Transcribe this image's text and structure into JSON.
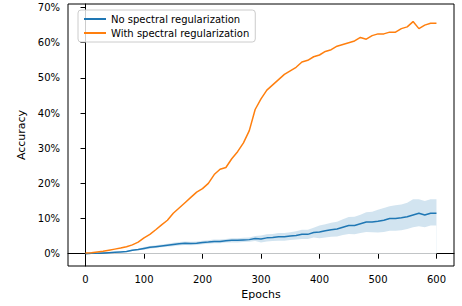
{
  "chart_data": {
    "type": "line",
    "x_label": "Epochs",
    "y_label": "Accuracy",
    "x": [
      0,
      10,
      20,
      30,
      40,
      50,
      60,
      70,
      80,
      90,
      100,
      110,
      120,
      130,
      140,
      150,
      160,
      170,
      180,
      190,
      200,
      210,
      220,
      230,
      240,
      250,
      260,
      270,
      280,
      290,
      300,
      310,
      320,
      330,
      340,
      350,
      360,
      370,
      380,
      390,
      400,
      410,
      420,
      430,
      440,
      450,
      460,
      470,
      480,
      490,
      500,
      510,
      520,
      530,
      540,
      550,
      560,
      570,
      580,
      590,
      600
    ],
    "series": [
      {
        "name": "No spectral regularization",
        "color": "#1f77b4",
        "values": [
          0,
          0.1,
          0.1,
          0.2,
          0.3,
          0.4,
          0.5,
          0.6,
          1.0,
          1.2,
          1.5,
          1.8,
          2.0,
          2.2,
          2.4,
          2.6,
          2.8,
          3.0,
          2.9,
          3.0,
          3.2,
          3.3,
          3.5,
          3.5,
          3.7,
          3.8,
          3.8,
          3.9,
          4.0,
          4.3,
          4.2,
          4.5,
          4.6,
          4.8,
          4.8,
          5.0,
          5.2,
          5.5,
          5.5,
          6.0,
          6.2,
          6.5,
          6.8,
          7.0,
          7.5,
          8.0,
          8.0,
          8.5,
          9.0,
          9.0,
          9.2,
          9.5,
          10.0,
          10.0,
          10.2,
          10.5,
          11.0,
          11.5,
          11.0,
          11.5,
          11.5
        ],
        "lower": [
          0,
          0,
          0,
          0.1,
          0.2,
          0.3,
          0.4,
          0.5,
          0.8,
          1.0,
          1.1,
          1.4,
          1.6,
          1.8,
          2.0,
          2.1,
          2.3,
          2.5,
          2.4,
          2.5,
          2.7,
          2.8,
          3.0,
          3.0,
          3.2,
          3.2,
          3.2,
          3.3,
          3.4,
          3.6,
          3.2,
          3.5,
          3.6,
          3.7,
          3.7,
          3.9,
          4.0,
          4.2,
          4.2,
          4.6,
          4.4,
          4.6,
          4.8,
          4.9,
          5.3,
          5.6,
          5.5,
          5.9,
          6.2,
          6.1,
          6.0,
          6.2,
          6.5,
          6.5,
          6.7,
          7.0,
          7.5,
          7.8,
          7.5,
          8.0,
          8.0
        ],
        "upper": [
          0.1,
          0.2,
          0.2,
          0.3,
          0.4,
          0.5,
          0.6,
          0.8,
          1.2,
          1.4,
          1.9,
          2.2,
          2.4,
          2.6,
          2.8,
          3.1,
          3.3,
          3.5,
          3.4,
          3.5,
          3.7,
          3.8,
          4.0,
          4.0,
          4.2,
          4.4,
          4.4,
          4.5,
          4.6,
          5.0,
          5.2,
          5.5,
          5.6,
          5.9,
          5.9,
          6.1,
          6.4,
          6.8,
          6.8,
          7.4,
          8.0,
          8.4,
          8.8,
          9.1,
          9.8,
          10.4,
          10.5,
          11.1,
          11.8,
          11.9,
          12.5,
          13.0,
          13.5,
          13.8,
          14.0,
          14.5,
          15.5,
          15.5,
          15.0,
          15.5,
          15.5
        ]
      },
      {
        "name": "With spectral regularization",
        "color": "#ff7f0e",
        "values": [
          0.2,
          0.3,
          0.5,
          0.7,
          1.0,
          1.3,
          1.6,
          2.0,
          2.5,
          3.3,
          4.5,
          5.5,
          6.8,
          8.2,
          9.5,
          11.5,
          13,
          14.5,
          16,
          17.5,
          18.5,
          20,
          22.5,
          24,
          24.5,
          27,
          29,
          31.5,
          35,
          41,
          44,
          46.5,
          48,
          49.5,
          51,
          52,
          53,
          54.5,
          55,
          56,
          56.5,
          57.5,
          58,
          59,
          59.5,
          60,
          60.5,
          61.5,
          61,
          62,
          62.5,
          62.5,
          63,
          63,
          64,
          64.5,
          66,
          64,
          65,
          65.5,
          65.5
        ]
      }
    ],
    "xlim": [
      -30,
      630
    ],
    "xticks": [
      0,
      100,
      200,
      300,
      400,
      500,
      600
    ],
    "ylim": [
      -3.5,
      71
    ],
    "yticks": [
      {
        "value": 0,
        "label": "0%"
      },
      {
        "value": 10,
        "label": "10%"
      },
      {
        "value": 20,
        "label": "20%"
      },
      {
        "value": 30,
        "label": "30%"
      },
      {
        "value": 40,
        "label": "40%"
      },
      {
        "value": 50,
        "label": "50%"
      },
      {
        "value": 60,
        "label": "60%"
      },
      {
        "value": 70,
        "label": "70%"
      }
    ],
    "legend": "upper left",
    "grid": false
  }
}
